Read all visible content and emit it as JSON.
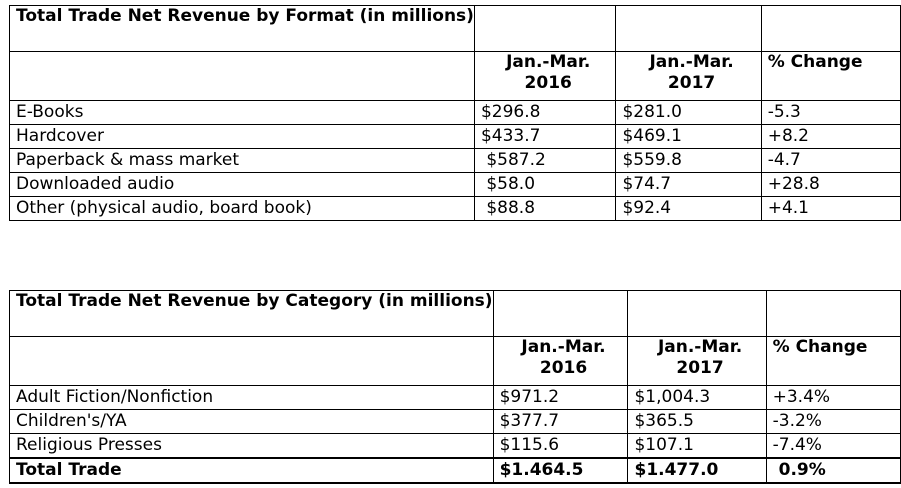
{
  "format_table": {
    "title": "Total Trade Net Revenue by Format (in millions)",
    "col_2016_line1": "Jan.-Mar.",
    "col_2016_line2": "2016",
    "col_2017_line1": "Jan.-Mar.",
    "col_2017_line2": "2017",
    "col_change": "% Change",
    "rows": [
      {
        "label": "E-Books",
        "v2016": "$296.8",
        "v2017": "$281.0",
        "change": "-5.3"
      },
      {
        "label": "Hardcover",
        "v2016": "$433.7",
        "v2017": "$469.1",
        "change": "+8.2"
      },
      {
        "label": "Paperback & mass market",
        "v2016": " $587.2",
        "v2017": "$559.8",
        "change": "-4.7"
      },
      {
        "label": "Downloaded audio",
        "v2016": " $58.0",
        "v2017": "$74.7",
        "change": "+28.8"
      },
      {
        "label": "Other (physical audio, board book)",
        "v2016": " $88.8",
        "v2017": "$92.4",
        "change": "+4.1"
      }
    ]
  },
  "category_table": {
    "title": "Total Trade Net Revenue by Category (in millions)",
    "col_2016_line1": "Jan.-Mar.",
    "col_2016_line2": "2016",
    "col_2017_line1": "Jan.-Mar.",
    "col_2017_line2": "2017",
    "col_change": "% Change",
    "rows": [
      {
        "label": "Adult Fiction/Nonfiction",
        "v2016": "$971.2",
        "v2017": "$1,004.3",
        "change": "+3.4%"
      },
      {
        "label": "Children's/YA",
        "v2016": "$377.7",
        "v2017": "$365.5",
        "change": "-3.2%"
      },
      {
        "label": "Religious Presses",
        "v2016": "$115.6",
        "v2017": "$107.1",
        "change": "-7.4%"
      }
    ],
    "total": {
      "label": "Total Trade",
      "v2016": "$1.464.5",
      "v2017": "$1.477.0",
      "change": "0.9%"
    }
  }
}
